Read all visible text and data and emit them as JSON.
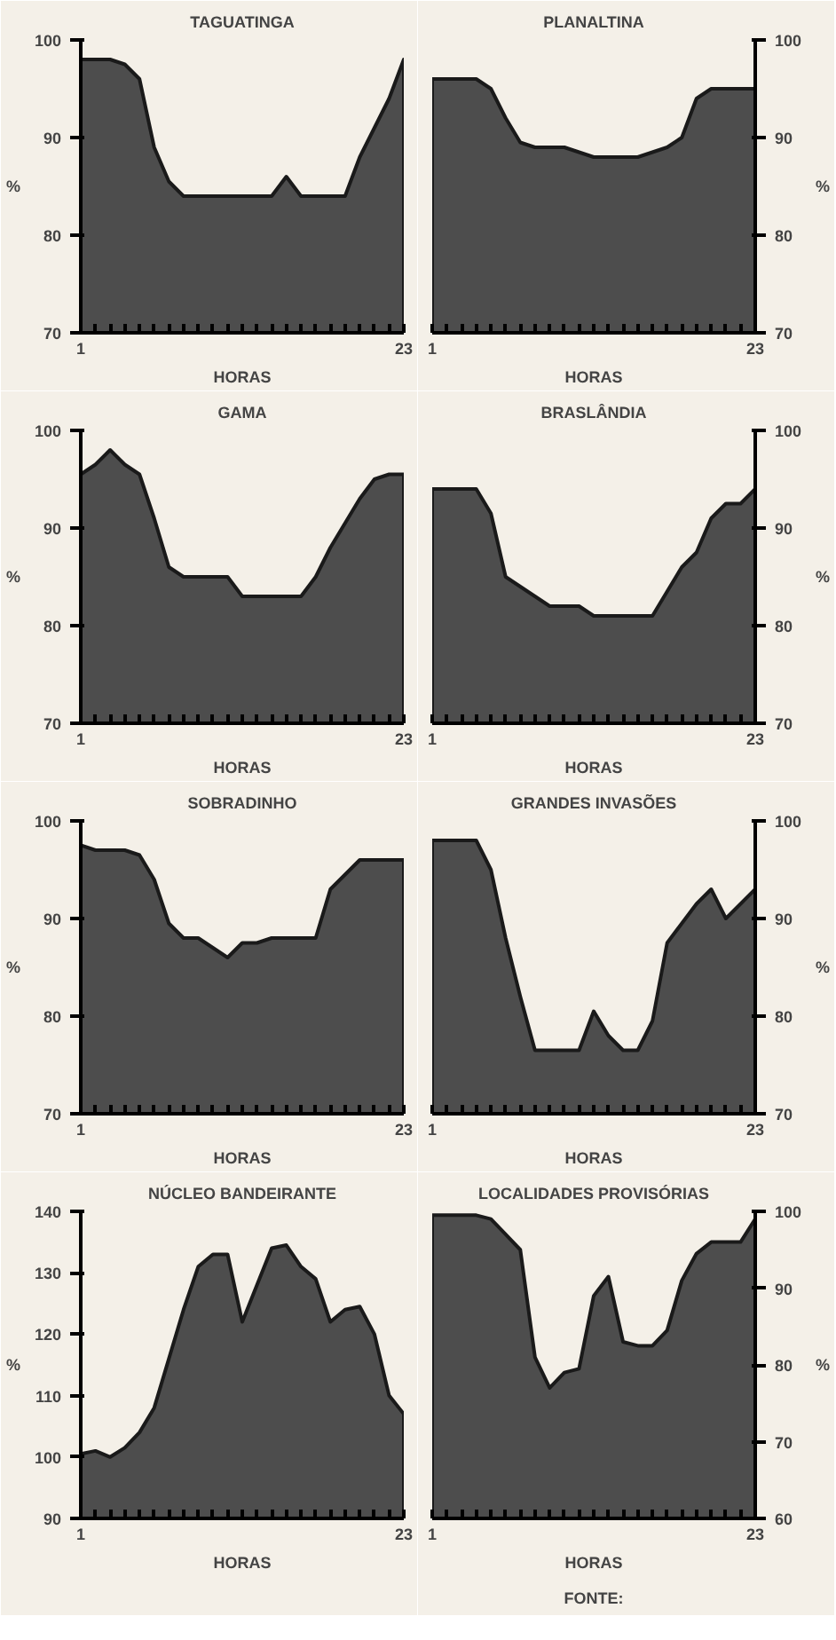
{
  "chart_data": [
    {
      "type": "area",
      "title": "TAGUATINGA",
      "xlabel": "HORAS",
      "ylabel": "%",
      "color": "#4d4d4d",
      "x": [
        1,
        2,
        3,
        4,
        5,
        6,
        7,
        8,
        9,
        10,
        11,
        12,
        13,
        14,
        15,
        16,
        17,
        18,
        19,
        20,
        21,
        22,
        23
      ],
      "values": [
        98,
        98,
        98,
        97.5,
        96,
        89,
        85.5,
        84,
        84,
        84,
        84,
        84,
        84,
        84,
        86,
        84,
        84,
        84,
        84,
        88,
        91,
        94,
        98
      ],
      "xlim": [
        1,
        23
      ],
      "xticks": [
        1,
        {
          "value": 2,
          "label": null
        },
        {
          "value": 3,
          "label": null
        },
        {
          "value": 4,
          "label": null
        },
        {
          "value": 5,
          "label": null
        },
        {
          "value": 6,
          "label": null
        },
        {
          "value": 7,
          "label": null
        },
        {
          "value": 8,
          "label": null
        },
        {
          "value": 9,
          "label": null
        },
        {
          "value": 10,
          "label": null
        },
        {
          "value": 11,
          "label": null
        },
        {
          "value": 12,
          "label": null
        },
        {
          "value": 13,
          "label": null
        },
        {
          "value": 14,
          "label": null
        },
        {
          "value": 15,
          "label": null
        },
        {
          "value": 16,
          "label": null
        },
        {
          "value": 17,
          "label": null
        },
        {
          "value": 18,
          "label": null
        },
        {
          "value": 19,
          "label": null
        },
        {
          "value": 20,
          "label": null
        },
        {
          "value": 21,
          "label": null
        },
        {
          "value": 22,
          "label": null
        },
        23
      ],
      "ylim": [
        70,
        100
      ],
      "yticks": [
        70,
        80,
        90,
        100
      ]
    },
    {
      "type": "area",
      "title": "PLANALTINA",
      "xlabel": "HORAS",
      "ylabel": "%",
      "color": "#4d4d4d",
      "x": [
        1,
        2,
        3,
        4,
        5,
        6,
        7,
        8,
        9,
        10,
        11,
        12,
        13,
        14,
        15,
        16,
        17,
        18,
        19,
        20,
        21,
        22,
        23
      ],
      "values": [
        96,
        96,
        96,
        96,
        95,
        92,
        89.5,
        89,
        89,
        89,
        88.5,
        88,
        88,
        88,
        88,
        88.5,
        89,
        90,
        94,
        95,
        95,
        95,
        95
      ],
      "xlim": [
        1,
        23
      ],
      "xticks": [
        1,
        {
          "value": 2,
          "label": null
        },
        {
          "value": 3,
          "label": null
        },
        {
          "value": 4,
          "label": null
        },
        {
          "value": 5,
          "label": null
        },
        {
          "value": 6,
          "label": null
        },
        {
          "value": 7,
          "label": null
        },
        {
          "value": 8,
          "label": null
        },
        {
          "value": 9,
          "label": null
        },
        {
          "value": 10,
          "label": null
        },
        {
          "value": 11,
          "label": null
        },
        {
          "value": 12,
          "label": null
        },
        {
          "value": 13,
          "label": null
        },
        {
          "value": 14,
          "label": null
        },
        {
          "value": 15,
          "label": null
        },
        {
          "value": 16,
          "label": null
        },
        {
          "value": 17,
          "label": null
        },
        {
          "value": 18,
          "label": null
        },
        {
          "value": 19,
          "label": null
        },
        {
          "value": 20,
          "label": null
        },
        {
          "value": 21,
          "label": null
        },
        {
          "value": 22,
          "label": null
        },
        23
      ],
      "ylim": [
        70,
        100
      ],
      "yticks": [
        70,
        80,
        90,
        100
      ]
    },
    {
      "type": "area",
      "title": "GAMA",
      "xlabel": "HORAS",
      "ylabel": "%",
      "color": "#4d4d4d",
      "x": [
        1,
        2,
        3,
        4,
        5,
        6,
        7,
        8,
        9,
        10,
        11,
        12,
        13,
        14,
        15,
        16,
        17,
        18,
        19,
        20,
        21,
        22,
        23
      ],
      "values": [
        95.5,
        96.5,
        98,
        96.5,
        95.5,
        91,
        86,
        85,
        85,
        85,
        85,
        83,
        83,
        83,
        83,
        83,
        85,
        88,
        90.5,
        93,
        95,
        95.5,
        95.5
      ],
      "xlim": [
        1,
        23
      ],
      "xticks": [
        1,
        {
          "value": 2,
          "label": null
        },
        {
          "value": 3,
          "label": null
        },
        {
          "value": 4,
          "label": null
        },
        {
          "value": 5,
          "label": null
        },
        {
          "value": 6,
          "label": null
        },
        {
          "value": 7,
          "label": null
        },
        {
          "value": 8,
          "label": null
        },
        {
          "value": 9,
          "label": null
        },
        {
          "value": 10,
          "label": null
        },
        {
          "value": 11,
          "label": null
        },
        {
          "value": 12,
          "label": null
        },
        {
          "value": 13,
          "label": null
        },
        {
          "value": 14,
          "label": null
        },
        {
          "value": 15,
          "label": null
        },
        {
          "value": 16,
          "label": null
        },
        {
          "value": 17,
          "label": null
        },
        {
          "value": 18,
          "label": null
        },
        {
          "value": 19,
          "label": null
        },
        {
          "value": 20,
          "label": null
        },
        {
          "value": 21,
          "label": null
        },
        {
          "value": 22,
          "label": null
        },
        23
      ],
      "ylim": [
        70,
        100
      ],
      "yticks": [
        70,
        80,
        90,
        100
      ]
    },
    {
      "type": "area",
      "title": "BRASLÂNDIA",
      "xlabel": "HORAS",
      "ylabel": "%",
      "color": "#4d4d4d",
      "x": [
        1,
        2,
        3,
        4,
        5,
        6,
        7,
        8,
        9,
        10,
        11,
        12,
        13,
        14,
        15,
        16,
        17,
        18,
        19,
        20,
        21,
        22,
        23
      ],
      "values": [
        94,
        94,
        94,
        94,
        91.5,
        85,
        84,
        83,
        82,
        82,
        82,
        81,
        81,
        81,
        81,
        81,
        83.5,
        86,
        87.5,
        91,
        92.5,
        92.5,
        94
      ],
      "xlim": [
        1,
        23
      ],
      "xticks": [
        1,
        {
          "value": 2,
          "label": null
        },
        {
          "value": 3,
          "label": null
        },
        {
          "value": 4,
          "label": null
        },
        {
          "value": 5,
          "label": null
        },
        {
          "value": 6,
          "label": null
        },
        {
          "value": 7,
          "label": null
        },
        {
          "value": 8,
          "label": null
        },
        {
          "value": 9,
          "label": null
        },
        {
          "value": 10,
          "label": null
        },
        {
          "value": 11,
          "label": null
        },
        {
          "value": 12,
          "label": null
        },
        {
          "value": 13,
          "label": null
        },
        {
          "value": 14,
          "label": null
        },
        {
          "value": 15,
          "label": null
        },
        {
          "value": 16,
          "label": null
        },
        {
          "value": 17,
          "label": null
        },
        {
          "value": 18,
          "label": null
        },
        {
          "value": 19,
          "label": null
        },
        {
          "value": 20,
          "label": null
        },
        {
          "value": 21,
          "label": null
        },
        {
          "value": 22,
          "label": null
        },
        23
      ],
      "ylim": [
        70,
        100
      ],
      "yticks": [
        70,
        80,
        90,
        100
      ]
    },
    {
      "type": "area",
      "title": "SOBRADINHO",
      "xlabel": "HORAS",
      "ylabel": "%",
      "color": "#4d4d4d",
      "x": [
        1,
        2,
        3,
        4,
        5,
        6,
        7,
        8,
        9,
        10,
        11,
        12,
        13,
        14,
        15,
        16,
        17,
        18,
        19,
        20,
        21,
        22,
        23
      ],
      "values": [
        97.5,
        97,
        97,
        97,
        96.5,
        94,
        89.5,
        88,
        88,
        87,
        86,
        87.5,
        87.5,
        88,
        88,
        88,
        88,
        93,
        94.5,
        96,
        96,
        96,
        96
      ],
      "xlim": [
        1,
        23
      ],
      "xticks": [
        1,
        {
          "value": 2,
          "label": null
        },
        {
          "value": 3,
          "label": null
        },
        {
          "value": 4,
          "label": null
        },
        {
          "value": 5,
          "label": null
        },
        {
          "value": 6,
          "label": null
        },
        {
          "value": 7,
          "label": null
        },
        {
          "value": 8,
          "label": null
        },
        {
          "value": 9,
          "label": null
        },
        {
          "value": 10,
          "label": null
        },
        {
          "value": 11,
          "label": null
        },
        {
          "value": 12,
          "label": null
        },
        {
          "value": 13,
          "label": null
        },
        {
          "value": 14,
          "label": null
        },
        {
          "value": 15,
          "label": null
        },
        {
          "value": 16,
          "label": null
        },
        {
          "value": 17,
          "label": null
        },
        {
          "value": 18,
          "label": null
        },
        {
          "value": 19,
          "label": null
        },
        {
          "value": 20,
          "label": null
        },
        {
          "value": 21,
          "label": null
        },
        {
          "value": 22,
          "label": null
        },
        23
      ],
      "ylim": [
        70,
        100
      ],
      "yticks": [
        70,
        80,
        90,
        100
      ]
    },
    {
      "type": "area",
      "title": "GRANDES INVASÕES",
      "xlabel": "HORAS",
      "ylabel": "%",
      "color": "#4d4d4d",
      "x": [
        1,
        2,
        3,
        4,
        5,
        6,
        7,
        8,
        9,
        10,
        11,
        12,
        13,
        14,
        15,
        16,
        17,
        18,
        19,
        20,
        21,
        22,
        23
      ],
      "values": [
        98,
        98,
        98,
        98,
        95,
        88,
        82,
        76.5,
        76.5,
        76.5,
        76.5,
        80.5,
        78,
        76.5,
        76.5,
        79.5,
        87.5,
        89.5,
        91.5,
        93,
        90,
        91.5,
        93
      ],
      "xlim": [
        1,
        23
      ],
      "xticks": [
        1,
        {
          "value": 2,
          "label": null
        },
        {
          "value": 3,
          "label": null
        },
        {
          "value": 4,
          "label": null
        },
        {
          "value": 5,
          "label": null
        },
        {
          "value": 6,
          "label": null
        },
        {
          "value": 7,
          "label": null
        },
        {
          "value": 8,
          "label": null
        },
        {
          "value": 9,
          "label": null
        },
        {
          "value": 10,
          "label": null
        },
        {
          "value": 11,
          "label": null
        },
        {
          "value": 12,
          "label": null
        },
        {
          "value": 13,
          "label": null
        },
        {
          "value": 14,
          "label": null
        },
        {
          "value": 15,
          "label": null
        },
        {
          "value": 16,
          "label": null
        },
        {
          "value": 17,
          "label": null
        },
        {
          "value": 18,
          "label": null
        },
        {
          "value": 19,
          "label": null
        },
        {
          "value": 20,
          "label": null
        },
        {
          "value": 21,
          "label": null
        },
        {
          "value": 22,
          "label": null
        },
        23
      ],
      "ylim": [
        70,
        100
      ],
      "yticks": [
        70,
        80,
        90,
        100
      ]
    },
    {
      "type": "area",
      "title": "NÚCLEO BANDEIRANTE",
      "xlabel": "HORAS",
      "ylabel": "%",
      "color": "#4d4d4d",
      "x": [
        1,
        2,
        3,
        4,
        5,
        6,
        7,
        8,
        9,
        10,
        11,
        12,
        13,
        14,
        15,
        16,
        17,
        18,
        19,
        20,
        21,
        22,
        23
      ],
      "values": [
        100.5,
        101,
        100,
        101.5,
        104,
        108,
        116,
        124,
        131,
        133,
        133,
        122,
        128,
        134,
        134.5,
        131,
        129,
        122,
        124,
        124.5,
        120,
        110,
        107
      ],
      "xlim": [
        1,
        23
      ],
      "xticks": [
        1,
        {
          "value": 2,
          "label": null
        },
        {
          "value": 3,
          "label": null
        },
        {
          "value": 4,
          "label": null
        },
        {
          "value": 5,
          "label": null
        },
        {
          "value": 6,
          "label": null
        },
        {
          "value": 7,
          "label": null
        },
        {
          "value": 8,
          "label": null
        },
        {
          "value": 9,
          "label": null
        },
        {
          "value": 10,
          "label": null
        },
        {
          "value": 11,
          "label": null
        },
        {
          "value": 12,
          "label": null
        },
        {
          "value": 13,
          "label": null
        },
        {
          "value": 14,
          "label": null
        },
        {
          "value": 15,
          "label": null
        },
        {
          "value": 16,
          "label": null
        },
        {
          "value": 17,
          "label": null
        },
        {
          "value": 18,
          "label": null
        },
        {
          "value": 19,
          "label": null
        },
        {
          "value": 20,
          "label": null
        },
        {
          "value": 21,
          "label": null
        },
        {
          "value": 22,
          "label": null
        },
        23
      ],
      "ylim": [
        90,
        140
      ],
      "yticks": [
        90,
        100,
        110,
        120,
        130,
        140
      ]
    },
    {
      "type": "area",
      "title": "LOCALIDADES PROVISÓRIAS",
      "xlabel": "HORAS",
      "ylabel": "%",
      "color": "#4d4d4d",
      "x": [
        1,
        2,
        3,
        4,
        5,
        6,
        7,
        8,
        9,
        10,
        11,
        12,
        13,
        14,
        15,
        16,
        17,
        18,
        19,
        20,
        21,
        22,
        23
      ],
      "values": [
        99.5,
        99.5,
        99.5,
        99.5,
        99,
        97,
        95,
        81,
        77,
        79,
        79.5,
        89,
        91.5,
        83,
        82.5,
        82.5,
        84.5,
        91,
        94.5,
        96,
        96,
        96,
        99
      ],
      "xlim": [
        1,
        23
      ],
      "xticks": [
        1,
        {
          "value": 2,
          "label": null
        },
        {
          "value": 3,
          "label": null
        },
        {
          "value": 4,
          "label": null
        },
        {
          "value": 5,
          "label": null
        },
        {
          "value": 6,
          "label": null
        },
        {
          "value": 7,
          "label": null
        },
        {
          "value": 8,
          "label": null
        },
        {
          "value": 9,
          "label": null
        },
        {
          "value": 10,
          "label": null
        },
        {
          "value": 11,
          "label": null
        },
        {
          "value": 12,
          "label": null
        },
        {
          "value": 13,
          "label": null
        },
        {
          "value": 14,
          "label": null
        },
        {
          "value": 15,
          "label": null
        },
        {
          "value": 16,
          "label": null
        },
        {
          "value": 17,
          "label": null
        },
        {
          "value": 18,
          "label": null
        },
        {
          "value": 19,
          "label": null
        },
        {
          "value": 20,
          "label": null
        },
        {
          "value": 21,
          "label": null
        },
        {
          "value": 22,
          "label": null
        },
        23
      ],
      "ylim": [
        60,
        100
      ],
      "yticks": [
        60,
        70,
        80,
        90,
        100
      ],
      "annotations": [
        "FONTE:"
      ]
    }
  ]
}
